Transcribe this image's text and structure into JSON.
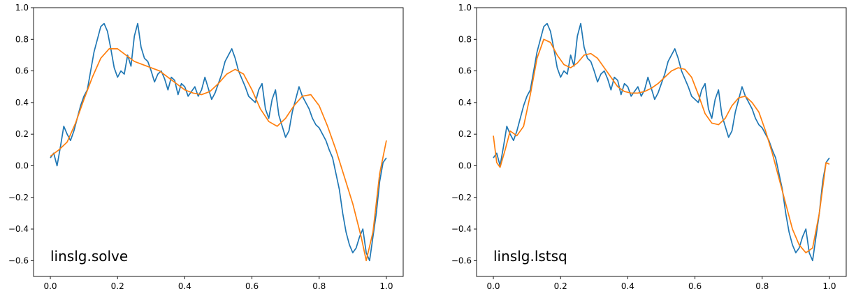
{
  "chart_data": [
    {
      "type": "line",
      "title": "",
      "xlabel": "",
      "ylabel": "",
      "annotation": "linslg.solve",
      "annotation_position": "bottom-left",
      "grid": false,
      "legend": "none",
      "xlim": [
        -0.05,
        1.05
      ],
      "ylim": [
        -0.7,
        1.0
      ],
      "xticks": [
        0.0,
        0.2,
        0.4,
        0.6,
        0.8,
        1.0
      ],
      "xtick_labels": [
        "0.0",
        "0.2",
        "0.4",
        "0.6",
        "0.8",
        "1.0"
      ],
      "yticks": [
        -0.6,
        -0.4,
        -0.2,
        0.0,
        0.2,
        0.4,
        0.6,
        0.8,
        1.0
      ],
      "ytick_labels": [
        "−0.6",
        "−0.4",
        "−0.2",
        "0.0",
        "0.2",
        "0.4",
        "0.6",
        "0.8",
        "1.0"
      ],
      "series": [
        {
          "color": "#1f77b4",
          "x": [
            0.0,
            0.01,
            0.02,
            0.03,
            0.04,
            0.05,
            0.06,
            0.07,
            0.08,
            0.09,
            0.1,
            0.11,
            0.12,
            0.13,
            0.14,
            0.15,
            0.16,
            0.17,
            0.18,
            0.19,
            0.2,
            0.21,
            0.22,
            0.23,
            0.24,
            0.25,
            0.26,
            0.27,
            0.28,
            0.29,
            0.3,
            0.31,
            0.32,
            0.33,
            0.34,
            0.35,
            0.36,
            0.37,
            0.38,
            0.39,
            0.4,
            0.41,
            0.42,
            0.43,
            0.44,
            0.45,
            0.46,
            0.47,
            0.48,
            0.49,
            0.5,
            0.51,
            0.52,
            0.53,
            0.54,
            0.55,
            0.56,
            0.57,
            0.58,
            0.59,
            0.6,
            0.61,
            0.62,
            0.63,
            0.64,
            0.65,
            0.66,
            0.67,
            0.68,
            0.69,
            0.7,
            0.71,
            0.72,
            0.73,
            0.74,
            0.75,
            0.76,
            0.77,
            0.78,
            0.79,
            0.8,
            0.81,
            0.82,
            0.83,
            0.84,
            0.85,
            0.86,
            0.87,
            0.88,
            0.89,
            0.9,
            0.91,
            0.92,
            0.93,
            0.94,
            0.95,
            0.96,
            0.97,
            0.98,
            0.99,
            1.0
          ],
          "y": [
            0.05,
            0.08,
            0.0,
            0.12,
            0.25,
            0.2,
            0.16,
            0.22,
            0.3,
            0.38,
            0.44,
            0.48,
            0.6,
            0.72,
            0.8,
            0.88,
            0.9,
            0.85,
            0.74,
            0.62,
            0.56,
            0.6,
            0.58,
            0.7,
            0.63,
            0.82,
            0.9,
            0.75,
            0.68,
            0.66,
            0.6,
            0.53,
            0.58,
            0.6,
            0.55,
            0.48,
            0.56,
            0.54,
            0.45,
            0.52,
            0.5,
            0.44,
            0.47,
            0.5,
            0.44,
            0.48,
            0.56,
            0.49,
            0.42,
            0.46,
            0.52,
            0.58,
            0.66,
            0.7,
            0.74,
            0.68,
            0.6,
            0.55,
            0.5,
            0.44,
            0.42,
            0.4,
            0.48,
            0.52,
            0.36,
            0.3,
            0.42,
            0.48,
            0.32,
            0.25,
            0.18,
            0.22,
            0.34,
            0.42,
            0.5,
            0.44,
            0.4,
            0.36,
            0.3,
            0.26,
            0.24,
            0.2,
            0.16,
            0.1,
            0.05,
            -0.05,
            -0.15,
            -0.3,
            -0.42,
            -0.5,
            -0.55,
            -0.52,
            -0.45,
            -0.4,
            -0.55,
            -0.6,
            -0.45,
            -0.3,
            -0.1,
            0.02,
            0.05
          ]
        },
        {
          "color": "#ff7f0e",
          "x": [
            0.0,
            0.025,
            0.05,
            0.075,
            0.1,
            0.125,
            0.15,
            0.175,
            0.2,
            0.225,
            0.25,
            0.275,
            0.3,
            0.325,
            0.35,
            0.375,
            0.4,
            0.425,
            0.45,
            0.475,
            0.5,
            0.525,
            0.55,
            0.575,
            0.6,
            0.625,
            0.65,
            0.675,
            0.7,
            0.725,
            0.75,
            0.775,
            0.8,
            0.825,
            0.85,
            0.875,
            0.9,
            0.925,
            0.94,
            0.96,
            0.98,
            1.0
          ],
          "y": [
            0.06,
            0.1,
            0.15,
            0.27,
            0.42,
            0.56,
            0.68,
            0.74,
            0.74,
            0.7,
            0.66,
            0.64,
            0.62,
            0.6,
            0.56,
            0.52,
            0.48,
            0.46,
            0.45,
            0.47,
            0.52,
            0.58,
            0.61,
            0.58,
            0.48,
            0.36,
            0.28,
            0.25,
            0.3,
            0.38,
            0.44,
            0.45,
            0.38,
            0.25,
            0.1,
            -0.07,
            -0.24,
            -0.45,
            -0.6,
            -0.42,
            -0.05,
            0.16
          ]
        }
      ]
    },
    {
      "type": "line",
      "title": "",
      "xlabel": "",
      "ylabel": "",
      "annotation": "linslg.lstsq",
      "annotation_position": "bottom-left",
      "grid": false,
      "legend": "none",
      "xlim": [
        -0.05,
        1.05
      ],
      "ylim": [
        -0.7,
        1.0
      ],
      "xticks": [
        0.0,
        0.2,
        0.4,
        0.6,
        0.8,
        1.0
      ],
      "xtick_labels": [
        "0.0",
        "0.2",
        "0.4",
        "0.6",
        "0.8",
        "1.0"
      ],
      "yticks": [
        -0.6,
        -0.4,
        -0.2,
        0.0,
        0.2,
        0.4,
        0.6,
        0.8,
        1.0
      ],
      "ytick_labels": [
        "−0.6",
        "−0.4",
        "−0.2",
        "0.0",
        "0.2",
        "0.4",
        "0.6",
        "0.8",
        "1.0"
      ],
      "series": [
        {
          "color": "#1f77b4",
          "x": [
            0.0,
            0.01,
            0.02,
            0.03,
            0.04,
            0.05,
            0.06,
            0.07,
            0.08,
            0.09,
            0.1,
            0.11,
            0.12,
            0.13,
            0.14,
            0.15,
            0.16,
            0.17,
            0.18,
            0.19,
            0.2,
            0.21,
            0.22,
            0.23,
            0.24,
            0.25,
            0.26,
            0.27,
            0.28,
            0.29,
            0.3,
            0.31,
            0.32,
            0.33,
            0.34,
            0.35,
            0.36,
            0.37,
            0.38,
            0.39,
            0.4,
            0.41,
            0.42,
            0.43,
            0.44,
            0.45,
            0.46,
            0.47,
            0.48,
            0.49,
            0.5,
            0.51,
            0.52,
            0.53,
            0.54,
            0.55,
            0.56,
            0.57,
            0.58,
            0.59,
            0.6,
            0.61,
            0.62,
            0.63,
            0.64,
            0.65,
            0.66,
            0.67,
            0.68,
            0.69,
            0.7,
            0.71,
            0.72,
            0.73,
            0.74,
            0.75,
            0.76,
            0.77,
            0.78,
            0.79,
            0.8,
            0.81,
            0.82,
            0.83,
            0.84,
            0.85,
            0.86,
            0.87,
            0.88,
            0.89,
            0.9,
            0.91,
            0.92,
            0.93,
            0.94,
            0.95,
            0.96,
            0.97,
            0.98,
            0.99,
            1.0
          ],
          "y": [
            0.05,
            0.08,
            0.0,
            0.12,
            0.25,
            0.2,
            0.16,
            0.22,
            0.3,
            0.38,
            0.44,
            0.48,
            0.6,
            0.72,
            0.8,
            0.88,
            0.9,
            0.85,
            0.74,
            0.62,
            0.56,
            0.6,
            0.58,
            0.7,
            0.63,
            0.82,
            0.9,
            0.75,
            0.68,
            0.66,
            0.6,
            0.53,
            0.58,
            0.6,
            0.55,
            0.48,
            0.56,
            0.54,
            0.45,
            0.52,
            0.5,
            0.44,
            0.47,
            0.5,
            0.44,
            0.48,
            0.56,
            0.49,
            0.42,
            0.46,
            0.52,
            0.58,
            0.66,
            0.7,
            0.74,
            0.68,
            0.6,
            0.55,
            0.5,
            0.44,
            0.42,
            0.4,
            0.48,
            0.52,
            0.36,
            0.3,
            0.42,
            0.48,
            0.32,
            0.25,
            0.18,
            0.22,
            0.34,
            0.42,
            0.5,
            0.44,
            0.4,
            0.36,
            0.3,
            0.26,
            0.24,
            0.2,
            0.16,
            0.1,
            0.05,
            -0.05,
            -0.15,
            -0.3,
            -0.42,
            -0.5,
            -0.55,
            -0.52,
            -0.45,
            -0.4,
            -0.55,
            -0.6,
            -0.45,
            -0.3,
            -0.1,
            0.02,
            0.05
          ]
        },
        {
          "color": "#ff7f0e",
          "x": [
            0.0,
            0.01,
            0.02,
            0.035,
            0.05,
            0.07,
            0.09,
            0.11,
            0.13,
            0.15,
            0.17,
            0.19,
            0.21,
            0.23,
            0.25,
            0.27,
            0.29,
            0.31,
            0.33,
            0.35,
            0.37,
            0.39,
            0.41,
            0.43,
            0.45,
            0.47,
            0.49,
            0.51,
            0.53,
            0.55,
            0.57,
            0.59,
            0.61,
            0.63,
            0.65,
            0.67,
            0.69,
            0.71,
            0.73,
            0.75,
            0.77,
            0.79,
            0.81,
            0.83,
            0.85,
            0.87,
            0.89,
            0.91,
            0.93,
            0.95,
            0.97,
            0.99,
            1.0
          ],
          "y": [
            0.19,
            0.02,
            -0.01,
            0.1,
            0.22,
            0.19,
            0.25,
            0.45,
            0.68,
            0.8,
            0.78,
            0.7,
            0.64,
            0.62,
            0.65,
            0.7,
            0.71,
            0.68,
            0.62,
            0.56,
            0.5,
            0.47,
            0.46,
            0.46,
            0.47,
            0.49,
            0.52,
            0.56,
            0.6,
            0.62,
            0.61,
            0.56,
            0.45,
            0.33,
            0.27,
            0.26,
            0.3,
            0.38,
            0.43,
            0.44,
            0.4,
            0.34,
            0.22,
            0.08,
            -0.08,
            -0.24,
            -0.4,
            -0.5,
            -0.55,
            -0.52,
            -0.3,
            0.02,
            0.01
          ]
        }
      ]
    }
  ]
}
